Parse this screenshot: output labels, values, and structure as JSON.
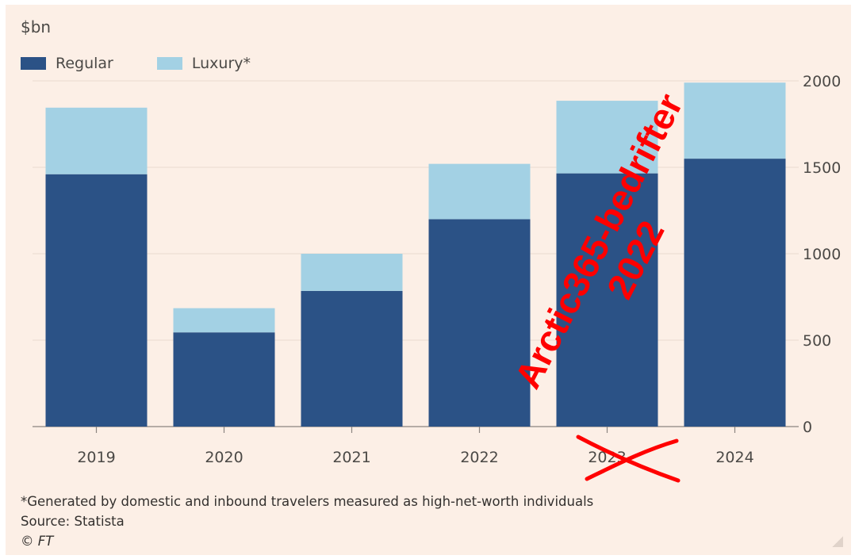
{
  "chart_data": {
    "type": "bar",
    "stacked": true,
    "unit_label": "$bn",
    "categories": [
      "2019",
      "2020",
      "2021",
      "2022",
      "2023",
      "2024"
    ],
    "series": [
      {
        "name": "Regular",
        "color": "#2b5286",
        "values": [
          1460,
          545,
          785,
          1200,
          1465,
          1550
        ]
      },
      {
        "name": "Luxury*",
        "color": "#a3d1e4",
        "values": [
          385,
          140,
          215,
          320,
          420,
          440
        ]
      }
    ],
    "ylim": [
      0,
      2000
    ],
    "yticks": [
      "0",
      "500",
      "1000",
      "1500",
      "2000"
    ],
    "y_axis_side": "right",
    "grid": true,
    "legend": "top-left"
  },
  "footnote": "*Generated by domestic and inbound travelers measured as high-net-worth individuals",
  "source": "Source: Statista",
  "copyright": "© FT",
  "watermark": {
    "text_line1": "Arctic365-bedrifter",
    "text_line2": "2022",
    "color": "#ff0000"
  }
}
